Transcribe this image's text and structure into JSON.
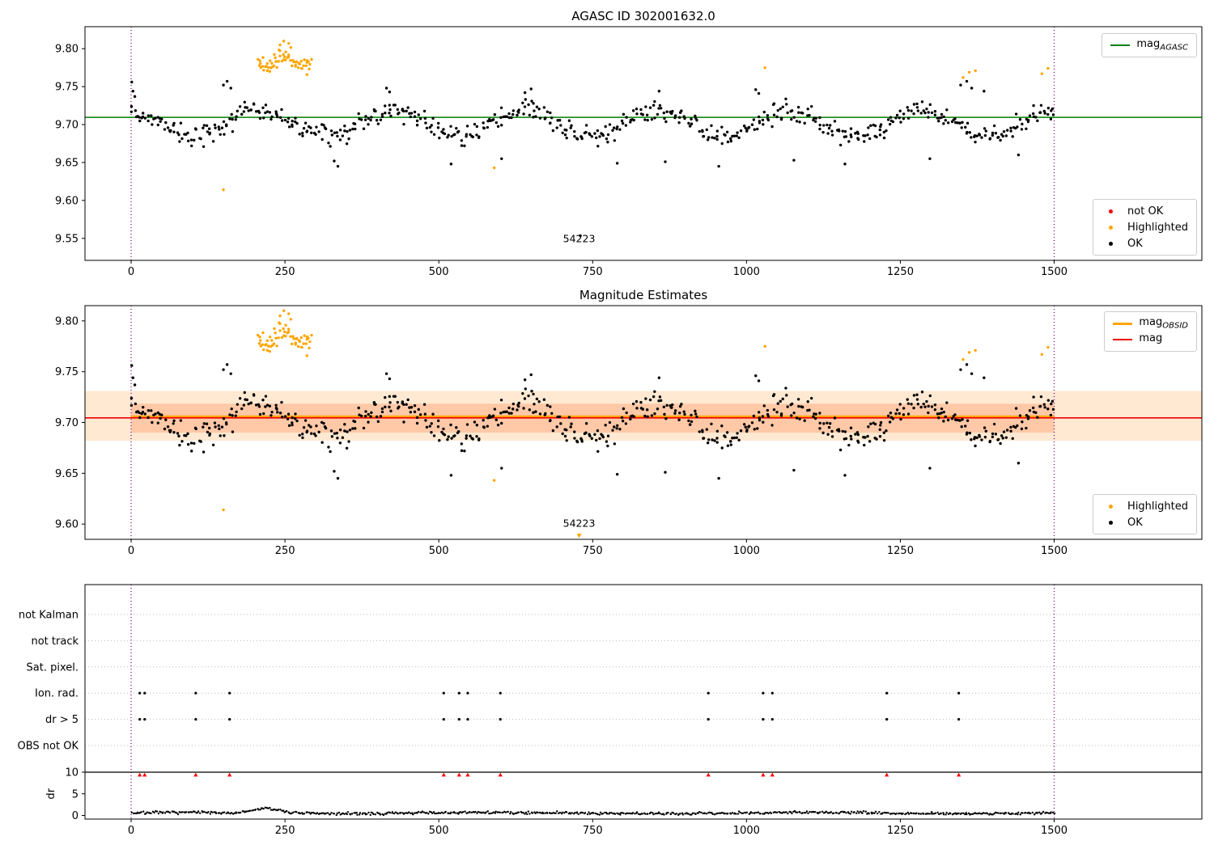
{
  "titles": {
    "plot1": "AGASC ID 302001632.0",
    "plot2": "Magnitude Estimates"
  },
  "colors": {
    "ok": "#000000",
    "highlight": "#ffa500",
    "notok": "#ff0000",
    "mag_agasc_line": "#007f00",
    "mag_line": "#ee0000",
    "mag_obsid_line": "#ffa500",
    "vline": "#800080",
    "band_outer": "rgba(255,166,77,0.25)",
    "band_inner": "rgba(255,120,60,0.28)",
    "grid": "#bbbbbb",
    "axis": "#000000"
  },
  "legends": {
    "p1_line": {
      "text": "mag",
      "sub": "AGASC"
    },
    "p1_markers": {
      "items": [
        {
          "label": "not OK"
        },
        {
          "label": "Highlighted"
        },
        {
          "label": "OK"
        }
      ]
    },
    "p2_line": {
      "items": [
        {
          "text": "mag",
          "sub": "OBSID"
        },
        {
          "text": "mag",
          "sub": ""
        }
      ]
    },
    "p2_markers": {
      "items": [
        {
          "label": "Highlighted"
        },
        {
          "label": "OK"
        }
      ]
    }
  },
  "chart_data": [
    {
      "type": "scatter",
      "title": "AGASC ID 302001632.0",
      "xlim": [
        -75,
        1740
      ],
      "ylim": [
        9.521,
        9.829
      ],
      "xticks": [
        0,
        250,
        500,
        750,
        1000,
        1250,
        1500
      ],
      "yticks": [
        9.55,
        9.6,
        9.65,
        9.7,
        9.75,
        9.8
      ],
      "hlines": [
        {
          "y": 9.7095,
          "color": "mag_agasc_line",
          "w": 1.6,
          "x0": "xlim",
          "x1": "xlim",
          "label": "mag_AGASC"
        }
      ],
      "vlines": [
        0,
        1500
      ],
      "ok_cloud": {
        "x0": 0,
        "x1": 1500,
        "count": 620,
        "xjit": 6,
        "base": 9.7015,
        "amp": 0.0165,
        "period": 215,
        "phase": 1.72,
        "noise": 0.013,
        "seed": 42,
        "min": 9.64,
        "max": 9.762
      },
      "ok_extra": [
        [
          730,
          9.5535
        ],
        [
          1,
          9.756
        ],
        [
          3,
          9.744
        ],
        [
          6,
          9.737
        ],
        [
          150,
          9.752
        ],
        [
          156,
          9.757
        ],
        [
          162,
          9.748
        ],
        [
          415,
          9.748
        ],
        [
          420,
          9.743
        ],
        [
          640,
          9.742
        ],
        [
          650,
          9.747
        ],
        [
          858,
          9.744
        ],
        [
          1015,
          9.746
        ],
        [
          1020,
          9.741
        ],
        [
          1348,
          9.752
        ],
        [
          1358,
          9.757
        ],
        [
          1366,
          9.748
        ],
        [
          1386,
          9.744
        ],
        [
          330,
          9.652
        ],
        [
          336,
          9.645
        ],
        [
          520,
          9.648
        ],
        [
          602,
          9.655
        ],
        [
          790,
          9.649
        ],
        [
          868,
          9.651
        ],
        [
          955,
          9.645
        ],
        [
          1077,
          9.653
        ],
        [
          1160,
          9.648
        ],
        [
          1298,
          9.655
        ],
        [
          1442,
          9.66
        ]
      ],
      "highlight_cloud": {
        "x0": 206,
        "x1": 293,
        "count": 62,
        "xjit": 3,
        "base": 9.784,
        "amp": 0.007,
        "period": 60,
        "phase": 0.5,
        "noise": 0.011,
        "seed": 11,
        "min": 9.763,
        "max": 9.813
      },
      "highlight_points": [
        [
          150,
          9.614
        ],
        [
          590,
          9.643
        ],
        [
          1030,
          9.775
        ],
        [
          1352,
          9.762
        ],
        [
          1362,
          9.769
        ],
        [
          1372,
          9.771
        ],
        [
          1480,
          9.767
        ],
        [
          1490,
          9.774
        ],
        [
          242,
          9.805
        ],
        [
          248,
          9.81
        ],
        [
          256,
          9.807
        ]
      ],
      "notok_points": [],
      "annotations": [
        {
          "text": "54223",
          "x": 728,
          "y": 9.545
        }
      ]
    },
    {
      "type": "scatter",
      "title": "Magnitude Estimates",
      "xlim": [
        -75,
        1740
      ],
      "ylim": [
        9.585,
        9.815
      ],
      "xticks": [
        0,
        250,
        500,
        750,
        1000,
        1250,
        1500
      ],
      "yticks": [
        9.6,
        9.65,
        9.7,
        9.75,
        9.8
      ],
      "bands": [
        {
          "y0": 9.682,
          "y1": 9.731,
          "x0": "xlim",
          "x1": "xlim",
          "color": "band_outer"
        },
        {
          "y0": 9.69,
          "y1": 9.7185,
          "x0": 0,
          "x1": 1500,
          "color": "band_inner"
        }
      ],
      "hlines": [
        {
          "y": 9.7045,
          "color": "mag_line",
          "w": 1.6,
          "x0": "xlim",
          "x1": "xlim",
          "label": "mag"
        },
        {
          "y": 9.706,
          "color": "mag_obsid_line",
          "w": 2.2,
          "x0": 0,
          "x1": 1500,
          "label": "mag_OBSID"
        }
      ],
      "vlines": [
        0,
        1500
      ],
      "inherit": 0,
      "triangles": [
        [
          728,
          9.5885
        ]
      ],
      "annotations": [
        {
          "text": "54223",
          "x": 728,
          "y": 9.5975
        }
      ]
    },
    {
      "type": "flags",
      "xlim": [
        -75,
        1740
      ],
      "xticks": [
        0,
        250,
        500,
        750,
        1000,
        1250,
        1500
      ],
      "categories": [
        "not Kalman",
        "not track",
        "Sat. pixel.",
        "Ion. rad.",
        "dr > 5",
        "OBS not OK"
      ],
      "flag_x": [
        14,
        22,
        105,
        160,
        508,
        533,
        547,
        600,
        938,
        1027,
        1042,
        1228,
        1345
      ],
      "flag_rows": [
        "Ion. rad.",
        "dr > 5"
      ],
      "red_y": 9.4,
      "dr_ticks": [
        0,
        5,
        10
      ],
      "dr_label": "dr",
      "threshold": 10,
      "vlines": [
        0,
        1500
      ],
      "dr_cloud": {
        "x0": 2,
        "x1": 1500,
        "count": 680,
        "xjit": 2,
        "base": 0.55,
        "amp": 0.12,
        "period": 500,
        "phase": 0.3,
        "noise": 0.3,
        "seed": 7,
        "min": 0.07,
        "max": 2.3,
        "bumps": [
          {
            "x": 215,
            "w": 16,
            "h": 1.05
          },
          {
            "x": 243,
            "w": 9,
            "h": 0.45
          }
        ]
      }
    }
  ]
}
